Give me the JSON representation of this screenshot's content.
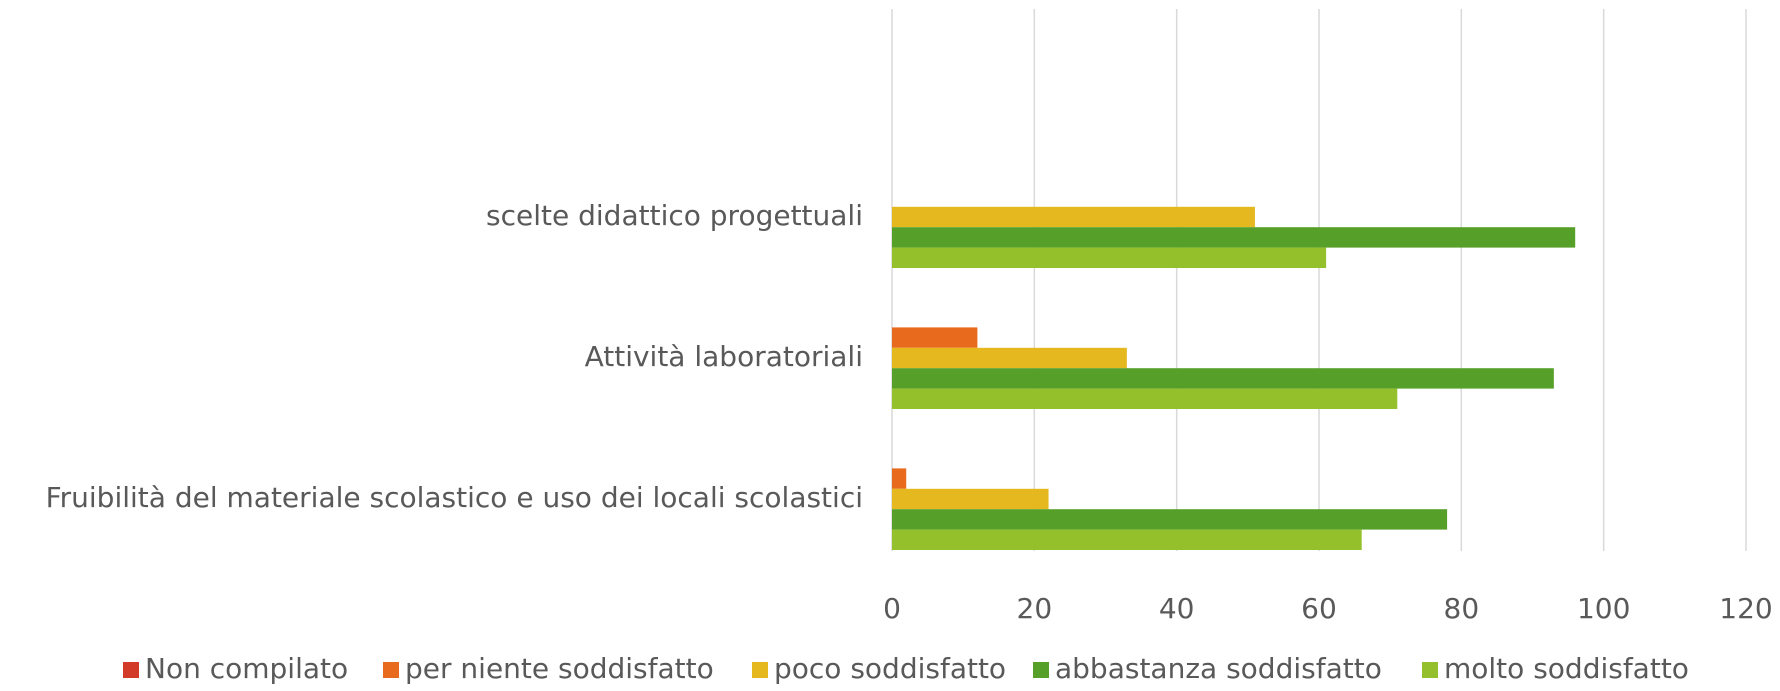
{
  "chart_data": {
    "type": "bar",
    "orientation": "horizontal",
    "categories": [
      null,
      "scelte didattico progettuali",
      "Attività laboratoriali",
      "Fruibilità del materiale scolastico e uso dei locali scolastici"
    ],
    "series": [
      {
        "name": "Non compilato",
        "color": "#d13b27",
        "values": [
          null,
          0,
          0,
          0
        ]
      },
      {
        "name": "per niente soddisfatto",
        "color": "#e86a1c",
        "values": [
          null,
          0,
          12,
          2
        ]
      },
      {
        "name": "poco soddisfatto",
        "color": "#e6b820",
        "values": [
          null,
          51,
          33,
          22
        ]
      },
      {
        "name": "abbastanza soddisfatto",
        "color": "#56a02a",
        "values": [
          null,
          96,
          93,
          78
        ]
      },
      {
        "name": "molto soddisfatto",
        "color": "#93c02b",
        "values": [
          null,
          61,
          71,
          66
        ]
      }
    ],
    "xlim": [
      0,
      120
    ],
    "xticks": [
      0,
      20,
      40,
      60,
      80,
      100,
      120
    ],
    "grid": true,
    "legend": "bottom"
  }
}
